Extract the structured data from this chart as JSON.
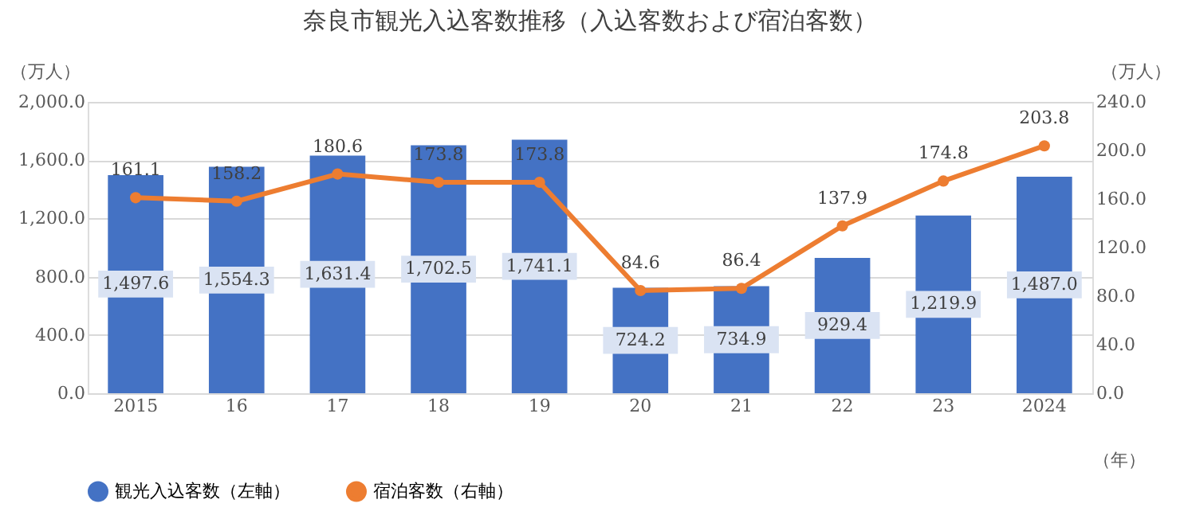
{
  "chart_data": {
    "type": "bar",
    "title": "奈良市観光入込客数推移（入込客数および宿泊客数）",
    "ylabel": "（万人）",
    "y2label": "（万人）",
    "xlabel": "（年）",
    "categories": [
      "2015",
      "16",
      "17",
      "18",
      "19",
      "20",
      "21",
      "22",
      "23",
      "2024"
    ],
    "series": [
      {
        "name": "観光入込客数（左軸）",
        "color": "#4472c4",
        "values": [
          1497.6,
          1554.3,
          1631.4,
          1702.5,
          1741.1,
          724.2,
          734.9,
          929.4,
          1219.9,
          1487.0
        ],
        "value_labels": [
          "1,497.6",
          "1,554.3",
          "1,631.4",
          "1,702.5",
          "1,741.1",
          "724.2",
          "734.9",
          "929.4",
          "1,219.9",
          "1,487.0"
        ]
      },
      {
        "name": "宿泊客数（右軸）",
        "type": "line",
        "axis": "y2",
        "color": "#ed7d31",
        "marker": "circle",
        "values": [
          161.1,
          158.2,
          180.6,
          173.8,
          173.8,
          84.6,
          86.4,
          137.9,
          174.8,
          203.8
        ]
      }
    ],
    "ylim": [
      0,
      2000
    ],
    "yticks": [
      {
        "value": 0,
        "label": "0.0"
      },
      {
        "value": 400,
        "label": "400.0"
      },
      {
        "value": 800,
        "label": "800.0"
      },
      {
        "value": 1200,
        "label": "1,200.0"
      },
      {
        "value": 1600,
        "label": "1,600.0"
      },
      {
        "value": 2000,
        "label": "2,000.0"
      }
    ],
    "y2lim": [
      0,
      240
    ],
    "y2ticks": [
      {
        "value": 0,
        "label": "0.0"
      },
      {
        "value": 40,
        "label": "40.0"
      },
      {
        "value": 80,
        "label": "80.0"
      },
      {
        "value": 120,
        "label": "120.0"
      },
      {
        "value": 160,
        "label": "160.0"
      },
      {
        "value": 200,
        "label": "200.0"
      },
      {
        "value": 240,
        "label": "240.0"
      }
    ],
    "data_labels": true,
    "grid": "y",
    "legend": "bottom"
  }
}
